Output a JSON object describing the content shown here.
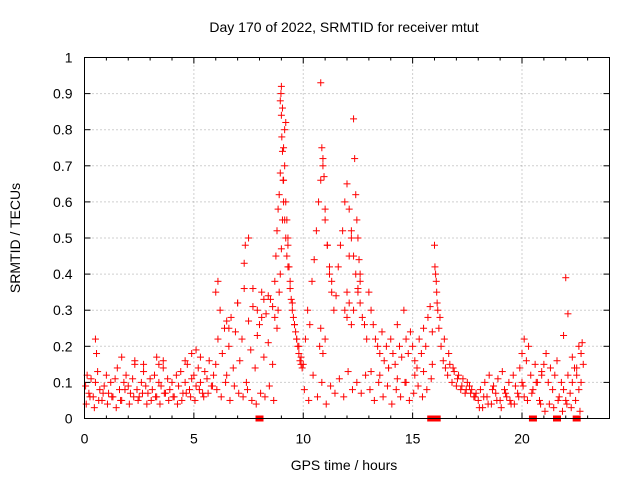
{
  "chart_data": {
    "type": "scatter",
    "title": "Day 170 of 2022, SRMTID for receiver mtut",
    "xlabel": "GPS time / hours",
    "ylabel": "SRMTID / TECUs",
    "xlim": [
      0,
      24
    ],
    "ylim": [
      0,
      1
    ],
    "xticks": [
      0,
      5,
      10,
      15,
      20
    ],
    "xtick_labels": [
      "0",
      "5",
      "10",
      "15",
      "20"
    ],
    "yticks": [
      0,
      0.1,
      0.2,
      0.3,
      0.4,
      0.5,
      0.6,
      0.7,
      0.8,
      0.9,
      1
    ],
    "ytick_labels": [
      "0",
      "0.1",
      "0.2",
      "0.3",
      "0.4",
      "0.5",
      "0.6",
      "0.7",
      "0.8",
      "0.9",
      "1"
    ],
    "grid": true,
    "marker": "+",
    "color": "#ff0000",
    "series": [
      {
        "name": "SRMTID",
        "x": [
          0.05,
          0.12,
          0.2,
          0.3,
          0.4,
          0.5,
          0.6,
          0.7,
          0.8,
          0.9,
          1.0,
          1.1,
          1.2,
          1.3,
          1.4,
          1.5,
          1.6,
          1.7,
          1.8,
          1.9,
          2.0,
          2.1,
          2.2,
          2.3,
          2.4,
          2.5,
          2.6,
          2.7,
          2.8,
          2.9,
          3.0,
          3.1,
          3.2,
          3.3,
          3.4,
          3.5,
          3.6,
          3.7,
          3.8,
          3.9,
          4.0,
          4.1,
          4.2,
          4.3,
          4.4,
          4.5,
          4.6,
          4.7,
          4.8,
          4.9,
          5.0,
          5.1,
          5.2,
          5.3,
          5.4,
          5.5,
          5.6,
          5.7,
          5.8,
          5.9,
          0.08,
          0.25,
          0.45,
          0.65,
          0.85,
          1.05,
          1.25,
          1.45,
          1.65,
          1.85,
          2.05,
          2.25,
          2.45,
          2.65,
          2.85,
          3.05,
          3.25,
          3.45,
          3.65,
          3.85,
          4.05,
          4.25,
          4.45,
          4.65,
          4.85,
          5.05,
          5.25,
          5.45,
          5.65,
          5.85,
          0.5,
          0.55,
          1.7,
          2.3,
          2.7,
          3.3,
          3.4,
          3.6,
          4.6,
          4.9,
          5.1,
          5.3,
          6.0,
          6.1,
          6.2,
          6.3,
          6.4,
          6.5,
          6.6,
          6.7,
          6.8,
          6.9,
          7.0,
          7.1,
          7.2,
          7.3,
          7.4,
          7.5,
          7.6,
          7.7,
          7.8,
          7.9,
          8.0,
          8.1,
          8.2,
          8.3,
          8.4,
          8.5,
          8.6,
          8.7,
          6.05,
          6.25,
          6.45,
          6.65,
          6.85,
          7.05,
          7.25,
          7.45,
          7.65,
          7.85,
          8.05,
          8.25,
          8.45,
          8.65,
          6.0,
          6.1,
          6.5,
          6.6,
          7.0,
          7.3,
          7.35,
          7.5,
          7.7,
          7.9,
          8.1,
          8.2,
          8.4,
          8.6,
          8.7,
          8.75,
          8.8,
          8.85,
          8.9,
          8.95,
          9.0,
          9.05,
          9.1,
          9.15,
          9.2,
          9.25,
          9.3,
          9.35,
          9.4,
          9.45,
          9.5,
          9.55,
          9.6,
          9.65,
          9.7,
          9.75,
          9.8,
          9.85,
          9.9,
          9.95,
          8.8,
          8.85,
          8.9,
          8.95,
          9.0,
          9.05,
          9.1,
          9.15,
          9.2,
          9.3,
          9.4,
          9.5,
          9.6,
          9.7,
          9.8,
          9.9,
          8.95,
          8.98,
          9.0,
          9.02,
          9.05,
          9.08,
          9.1,
          9.15,
          9.2,
          9.25,
          9.3,
          10.0,
          10.1,
          10.2,
          10.3,
          10.4,
          10.5,
          10.6,
          10.7,
          10.8,
          10.9,
          11.0,
          11.1,
          11.2,
          11.3,
          11.4,
          11.5,
          11.6,
          11.7,
          11.8,
          11.9,
          12.0,
          12.1,
          12.2,
          12.3,
          12.4,
          12.5,
          12.6,
          12.7,
          12.8,
          12.9,
          10.05,
          10.25,
          10.45,
          10.65,
          10.85,
          11.05,
          11.25,
          11.45,
          11.65,
          11.85,
          12.05,
          12.25,
          12.45,
          12.65,
          12.85,
          10.8,
          10.85,
          10.9,
          10.95,
          11.0,
          11.1,
          11.2,
          11.3,
          11.9,
          12.0,
          12.1,
          12.2,
          12.3,
          12.35,
          12.4,
          12.45,
          12.5,
          12.55,
          12.6,
          10.75,
          10.8,
          10.9,
          11.0,
          12.0,
          12.1,
          12.2,
          12.3,
          12.5,
          12.6,
          13.0,
          13.1,
          13.2,
          13.3,
          13.4,
          13.5,
          13.6,
          13.7,
          13.8,
          13.9,
          14.0,
          14.1,
          14.2,
          14.3,
          14.4,
          14.5,
          14.6,
          14.7,
          14.8,
          14.9,
          15.0,
          15.1,
          15.2,
          15.3,
          15.4,
          15.5,
          15.6,
          15.7,
          15.8,
          15.9,
          13.05,
          13.25,
          13.45,
          13.65,
          13.85,
          14.05,
          14.25,
          14.45,
          14.65,
          14.85,
          15.05,
          15.25,
          15.45,
          15.65,
          15.85,
          13.1,
          13.5,
          13.9,
          14.3,
          14.7,
          15.1,
          15.5,
          15.9,
          16.0,
          16.05,
          16.1,
          16.15,
          16.2,
          16.3,
          16.4,
          16.5,
          16.6,
          16.7,
          16.8,
          16.9,
          17.0,
          17.1,
          17.2,
          17.3,
          17.4,
          17.5,
          17.6,
          17.7,
          17.8,
          17.9,
          16.02,
          16.08,
          16.12,
          16.25,
          16.45,
          16.65,
          16.85,
          17.05,
          17.25,
          17.45,
          17.65,
          17.85,
          18.0,
          18.1,
          18.2,
          18.3,
          18.4,
          18.5,
          18.6,
          18.7,
          18.8,
          18.9,
          19.0,
          19.1,
          19.2,
          19.3,
          19.4,
          19.5,
          19.6,
          19.7,
          19.8,
          19.9,
          20.0,
          20.1,
          20.2,
          20.3,
          20.4,
          20.5,
          20.6,
          20.7,
          20.8,
          20.9,
          18.05,
          18.25,
          18.45,
          18.65,
          18.85,
          19.05,
          19.25,
          19.45,
          19.65,
          19.85,
          20.05,
          20.25,
          20.45,
          20.65,
          20.85,
          20.0,
          20.1,
          20.9,
          21.0,
          21.1,
          21.2,
          21.3,
          21.4,
          21.5,
          21.6,
          21.7,
          21.8,
          21.9,
          22.0,
          22.1,
          22.2,
          22.3,
          22.4,
          22.5,
          22.6,
          22.7,
          22.8,
          21.05,
          21.25,
          21.45,
          21.65,
          21.85,
          22.05,
          22.25,
          22.45,
          22.65,
          21.9,
          22.0,
          22.1,
          22.3,
          22.5,
          22.6,
          22.7,
          22.75
        ],
        "y": [
          0.09,
          0.12,
          0.07,
          0.11,
          0.06,
          0.1,
          0.13,
          0.08,
          0.05,
          0.09,
          0.12,
          0.07,
          0.1,
          0.06,
          0.11,
          0.14,
          0.08,
          0.05,
          0.1,
          0.12,
          0.09,
          0.07,
          0.11,
          0.15,
          0.08,
          0.06,
          0.1,
          0.13,
          0.09,
          0.07,
          0.11,
          0.08,
          0.12,
          0.06,
          0.1,
          0.09,
          0.14,
          0.07,
          0.11,
          0.08,
          0.1,
          0.06,
          0.12,
          0.09,
          0.13,
          0.07,
          0.1,
          0.15,
          0.08,
          0.11,
          0.12,
          0.09,
          0.14,
          0.1,
          0.07,
          0.13,
          0.11,
          0.16,
          0.09,
          0.12,
          0.04,
          0.06,
          0.03,
          0.05,
          0.07,
          0.04,
          0.06,
          0.03,
          0.05,
          0.08,
          0.04,
          0.06,
          0.05,
          0.07,
          0.04,
          0.05,
          0.06,
          0.04,
          0.07,
          0.05,
          0.06,
          0.04,
          0.05,
          0.07,
          0.06,
          0.05,
          0.08,
          0.06,
          0.07,
          0.09,
          0.22,
          0.18,
          0.17,
          0.16,
          0.15,
          0.17,
          0.15,
          0.16,
          0.16,
          0.18,
          0.19,
          0.17,
          0.15,
          0.22,
          0.3,
          0.18,
          0.25,
          0.12,
          0.2,
          0.28,
          0.14,
          0.24,
          0.32,
          0.16,
          0.22,
          0.36,
          0.1,
          0.27,
          0.19,
          0.31,
          0.14,
          0.23,
          0.26,
          0.35,
          0.17,
          0.29,
          0.21,
          0.33,
          0.15,
          0.28,
          0.08,
          0.06,
          0.1,
          0.05,
          0.09,
          0.07,
          0.06,
          0.08,
          0.05,
          0.04,
          0.07,
          0.06,
          0.09,
          0.05,
          0.35,
          0.38,
          0.27,
          0.25,
          0.32,
          0.43,
          0.48,
          0.5,
          0.36,
          0.3,
          0.28,
          0.33,
          0.34,
          0.31,
          0.38,
          0.45,
          0.52,
          0.58,
          0.62,
          0.68,
          0.92,
          0.86,
          0.75,
          0.7,
          0.6,
          0.55,
          0.48,
          0.42,
          0.36,
          0.33,
          0.3,
          0.28,
          0.26,
          0.24,
          0.22,
          0.2,
          0.18,
          0.16,
          0.15,
          0.14,
          0.25,
          0.3,
          0.35,
          0.4,
          0.47,
          0.55,
          0.66,
          0.8,
          0.82,
          0.5,
          0.38,
          0.32,
          0.26,
          0.22,
          0.2,
          0.17,
          0.88,
          0.9,
          0.84,
          0.78,
          0.74,
          0.66,
          0.6,
          0.55,
          0.5,
          0.45,
          0.42,
          0.15,
          0.22,
          0.3,
          0.26,
          0.38,
          0.44,
          0.52,
          0.6,
          0.66,
          0.72,
          0.55,
          0.48,
          0.4,
          0.35,
          0.3,
          0.34,
          0.42,
          0.48,
          0.52,
          0.6,
          0.65,
          0.58,
          0.5,
          0.45,
          0.4,
          0.36,
          0.32,
          0.28,
          0.26,
          0.22,
          0.08,
          0.05,
          0.12,
          0.06,
          0.1,
          0.04,
          0.09,
          0.07,
          0.11,
          0.06,
          0.13,
          0.08,
          0.1,
          0.07,
          0.12,
          0.93,
          0.75,
          0.7,
          0.67,
          0.58,
          0.48,
          0.42,
          0.38,
          0.3,
          0.35,
          0.45,
          0.52,
          0.83,
          0.72,
          0.62,
          0.55,
          0.5,
          0.44,
          0.4,
          0.2,
          0.25,
          0.18,
          0.22,
          0.28,
          0.32,
          0.26,
          0.3,
          0.35,
          0.38,
          0.35,
          0.3,
          0.26,
          0.22,
          0.2,
          0.18,
          0.24,
          0.16,
          0.2,
          0.14,
          0.22,
          0.18,
          0.15,
          0.26,
          0.2,
          0.17,
          0.3,
          0.22,
          0.18,
          0.24,
          0.2,
          0.16,
          0.14,
          0.22,
          0.18,
          0.25,
          0.2,
          0.28,
          0.31,
          0.24,
          0.08,
          0.05,
          0.1,
          0.06,
          0.09,
          0.04,
          0.08,
          0.06,
          0.1,
          0.05,
          0.07,
          0.09,
          0.06,
          0.08,
          0.11,
          0.13,
          0.12,
          0.14,
          0.11,
          0.1,
          0.12,
          0.13,
          0.15,
          0.48,
          0.4,
          0.35,
          0.3,
          0.25,
          0.2,
          0.16,
          0.14,
          0.12,
          0.15,
          0.1,
          0.13,
          0.09,
          0.12,
          0.08,
          0.11,
          0.07,
          0.1,
          0.09,
          0.08,
          0.06,
          0.07,
          0.42,
          0.38,
          0.32,
          0.28,
          0.22,
          0.18,
          0.14,
          0.11,
          0.09,
          0.08,
          0.07,
          0.06,
          0.05,
          0.08,
          0.03,
          0.1,
          0.06,
          0.12,
          0.04,
          0.09,
          0.07,
          0.11,
          0.05,
          0.13,
          0.08,
          0.06,
          0.1,
          0.04,
          0.12,
          0.09,
          0.07,
          0.14,
          0.1,
          0.06,
          0.16,
          0.2,
          0.12,
          0.08,
          0.15,
          0.1,
          0.05,
          0.13,
          0.03,
          0.06,
          0.04,
          0.08,
          0.05,
          0.03,
          0.07,
          0.05,
          0.04,
          0.06,
          0.09,
          0.05,
          0.07,
          0.1,
          0.04,
          0.18,
          0.22,
          0.12,
          0.15,
          0.18,
          0.1,
          0.14,
          0.08,
          0.12,
          0.16,
          0.06,
          0.1,
          0.08,
          0.05,
          0.12,
          0.07,
          0.1,
          0.14,
          0.12,
          0.08,
          0.1,
          0.15,
          0.02,
          0.04,
          0.03,
          0.05,
          0.02,
          0.04,
          0.03,
          0.05,
          0.02,
          0.23,
          0.39,
          0.29,
          0.17,
          0.14,
          0.2,
          0.18,
          0.21
        ]
      }
    ],
    "zero_markers_x": [
      8.0,
      15.85,
      16.1,
      20.5,
      21.6,
      22.5
    ]
  }
}
